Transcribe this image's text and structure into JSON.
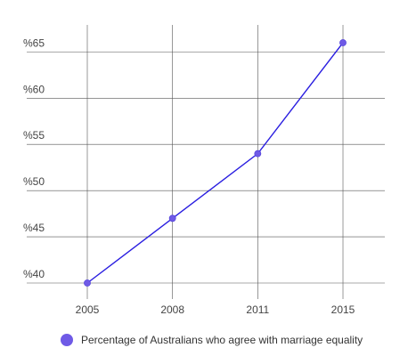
{
  "chart_data": {
    "type": "line",
    "title": "",
    "xlabel": "",
    "ylabel": "",
    "categories": [
      "2005",
      "2008",
      "2011",
      "2015"
    ],
    "series": [
      {
        "name": "Percentage of Australians who agree with marriage equality",
        "values": [
          40,
          47,
          54,
          66
        ]
      }
    ],
    "ylim": [
      38,
      68
    ],
    "yticks": [
      40,
      45,
      50,
      55,
      60,
      65
    ],
    "ytick_labels": [
      "%40",
      "%45",
      "%50",
      "%55",
      "%60",
      "%65"
    ],
    "grid": true,
    "legend_position": "bottom-left"
  },
  "colors": {
    "line": "#2a1ee0",
    "marker": "#6f5ae6",
    "legend_swatch": "#6f5ae6",
    "grid": "#555555"
  }
}
